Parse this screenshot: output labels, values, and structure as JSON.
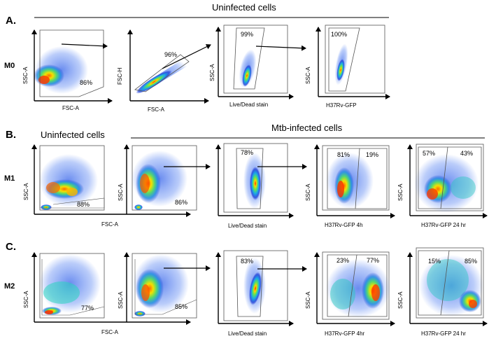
{
  "panels": {
    "A": {
      "letter": "A.",
      "header": "Uninfected cells",
      "row_label": "M0"
    },
    "B": {
      "letter": "B.",
      "header_left": "Uninfected cells",
      "header_right": "Mtb-infected cells",
      "row_label": "M1"
    },
    "C": {
      "letter": "C.",
      "row_label": "M2"
    }
  },
  "plots": {
    "a1": {
      "ylabel": "SSC-A",
      "xlabel": "FSC-A",
      "gate": "86%"
    },
    "a2": {
      "ylabel": "FSC-H",
      "xlabel": "FSC-A",
      "gate": "96%"
    },
    "a3": {
      "ylabel": "SSC-A",
      "xlabel": "Live/Dead stain",
      "gate": "99%"
    },
    "a4": {
      "ylabel": "SSC-A",
      "xlabel": "H37Rv-GFP",
      "gate": "100%"
    },
    "b1": {
      "ylabel": "SSC-A",
      "gate": "88%"
    },
    "b2": {
      "ylabel": "SSC-A",
      "gate": "86%"
    },
    "b_x": "FSC-A",
    "b3": {
      "xlabel": "Live/Dead stain",
      "gate": "78%"
    },
    "b4": {
      "ylabel": "SSC-A",
      "xlabel": "H37Rv-GFP 4h",
      "left": "81%",
      "right": "19%"
    },
    "b5": {
      "ylabel": "SSC-A",
      "xlabel": "H37Rv-GFP 24 hr",
      "left": "57%",
      "right": "43%"
    },
    "c1": {
      "ylabel": "SSC-A",
      "gate": "77%"
    },
    "c2": {
      "ylabel": "SSC-A",
      "gate": "85%"
    },
    "c_x": "FSC-A",
    "c3": {
      "xlabel": "Live/Dead stain",
      "gate": "83%"
    },
    "c4": {
      "ylabel": "SSC-A",
      "xlabel": "H37Rv-GFP 4hr",
      "left": "23%",
      "right": "77%"
    },
    "c5": {
      "ylabel": "SSC-A",
      "xlabel": "H37Rv-GFP 24 hr",
      "left": "15%",
      "right": "85%"
    }
  }
}
